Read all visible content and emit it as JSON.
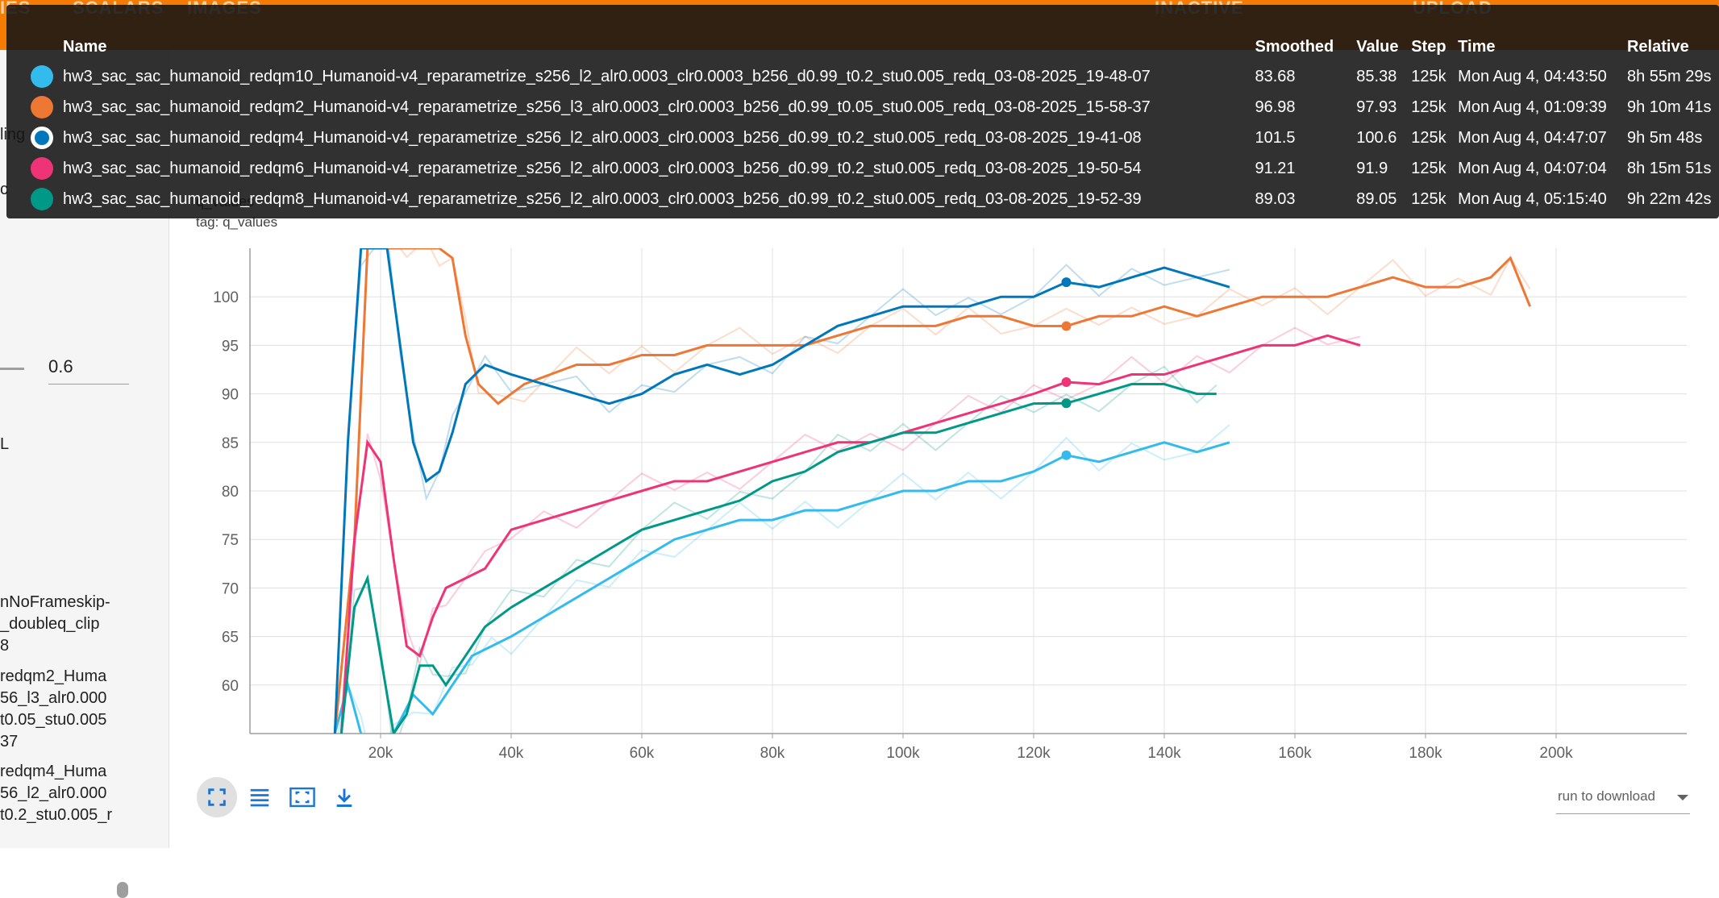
{
  "nav": {
    "tabs": [
      "IES",
      "SCALARS",
      "IMAGES"
    ],
    "status": "INACTIVE",
    "upload_label": "UPLOAD"
  },
  "sidebar": {
    "smoothing_fragment": "ling",
    "smoothing_value": "0.6",
    "fragment_l": "L",
    "fragment_c": "c",
    "run_fragments": [
      "nNoFrameskip-\n_doubleq_clip\n8",
      "redqm2_Huma\n56_l3_alr0.000\nt0.05_stu0.005\n37",
      "redqm4_Huma\n56_l2_alr0.000\nt0.2_stu0.005_r"
    ]
  },
  "chart_title": "q_values",
  "chart_tag": "tag: q_values",
  "download_label": "run to download",
  "tooltip": {
    "headers": [
      "Name",
      "Smoothed",
      "Value",
      "Step",
      "Time",
      "Relative"
    ],
    "rows": [
      {
        "name": "hw3_sac_sac_humanoid_redqm10_Humanoid-v4_reparametrize_s256_l2_alr0.0003_clr0.0003_b256_d0.99_t0.2_stu0.005_redq_03-08-2025_19-48-07",
        "smoothed": "83.68",
        "value": "85.38",
        "step": "125k",
        "time": "Mon Aug 4, 04:43:50",
        "relative": "8h 55m 29s",
        "color": "#33bbee",
        "hollow": false
      },
      {
        "name": "hw3_sac_sac_humanoid_redqm2_Humanoid-v4_reparametrize_s256_l3_alr0.0003_clr0.0003_b256_d0.99_t0.05_stu0.005_redq_03-08-2025_15-58-37",
        "smoothed": "96.98",
        "value": "97.93",
        "step": "125k",
        "time": "Mon Aug 4, 01:09:39",
        "relative": "9h 10m 41s",
        "color": "#ee7733",
        "hollow": false
      },
      {
        "name": "hw3_sac_sac_humanoid_redqm4_Humanoid-v4_reparametrize_s256_l2_alr0.0003_clr0.0003_b256_d0.99_t0.2_stu0.005_redq_03-08-2025_19-41-08",
        "smoothed": "101.5",
        "value": "100.6",
        "step": "125k",
        "time": "Mon Aug 4, 04:47:07",
        "relative": "9h 5m 48s",
        "color": "#0077bb",
        "hollow": true
      },
      {
        "name": "hw3_sac_sac_humanoid_redqm6_Humanoid-v4_reparametrize_s256_l2_alr0.0003_clr0.0003_b256_d0.99_t0.2_stu0.005_redq_03-08-2025_19-50-54",
        "smoothed": "91.21",
        "value": "91.9",
        "step": "125k",
        "time": "Mon Aug 4, 04:07:04",
        "relative": "8h 15m 51s",
        "color": "#ee3377",
        "hollow": false
      },
      {
        "name": "hw3_sac_sac_humanoid_redqm8_Humanoid-v4_reparametrize_s256_l2_alr0.0003_clr0.0003_b256_d0.99_t0.2_stu0.005_redq_03-08-2025_19-52-39",
        "smoothed": "89.03",
        "value": "89.05",
        "step": "125k",
        "time": "Mon Aug 4, 05:15:40",
        "relative": "9h 22m 42s",
        "color": "#009988",
        "hollow": false
      }
    ]
  },
  "chart_data": {
    "type": "line",
    "title": "q_values",
    "xlabel": "",
    "ylabel": "",
    "xlim": [
      0,
      220000
    ],
    "ylim": [
      55,
      105
    ],
    "x_ticks": [
      20000,
      40000,
      60000,
      80000,
      100000,
      120000,
      140000,
      160000,
      180000,
      200000
    ],
    "x_tick_labels": [
      "20k",
      "40k",
      "60k",
      "80k",
      "100k",
      "120k",
      "140k",
      "160k",
      "180k",
      "200k"
    ],
    "y_ticks": [
      60,
      65,
      70,
      75,
      80,
      85,
      90,
      95,
      100
    ],
    "grid": true,
    "hover_step": 125000,
    "series": [
      {
        "name": "hw3_sac_sac_humanoid_redqm10_Humanoid-v4_reparametrize_s256_l2_alr0.0003_clr0.0003_b256_d0.99_t0.2_stu0.005_redq_03-08-2025_19-48-07",
        "color": "#33bbee",
        "x": [
          13000,
          15000,
          17000,
          19000,
          22000,
          25000,
          28000,
          31000,
          34000,
          37000,
          40000,
          45000,
          50000,
          55000,
          60000,
          65000,
          70000,
          75000,
          80000,
          85000,
          90000,
          95000,
          100000,
          105000,
          110000,
          115000,
          120000,
          125000,
          130000,
          135000,
          140000,
          145000,
          150000
        ],
        "y": [
          55,
          60,
          55,
          52,
          55,
          59,
          57,
          60,
          63,
          64,
          65,
          67,
          69,
          71,
          73,
          75,
          76,
          77,
          77,
          78,
          78,
          79,
          80,
          80,
          81,
          81,
          82,
          83.68,
          83,
          84,
          85,
          84,
          85
        ]
      },
      {
        "name": "hw3_sac_sac_humanoid_redqm2_Humanoid-v4_reparametrize_s256_l3_alr0.0003_clr0.0003_b256_d0.99_t0.05_stu0.005_redq_03-08-2025_15-58-37",
        "color": "#ee7733",
        "x": [
          13000,
          16000,
          18000,
          21000,
          24000,
          27000,
          29000,
          31000,
          33000,
          35000,
          38000,
          42000,
          46000,
          50000,
          55000,
          60000,
          65000,
          70000,
          75000,
          80000,
          85000,
          90000,
          95000,
          100000,
          105000,
          110000,
          115000,
          120000,
          125000,
          130000,
          135000,
          140000,
          145000,
          150000,
          155000,
          160000,
          165000,
          170000,
          175000,
          180000,
          185000,
          190000,
          193000,
          196000
        ],
        "y": [
          55,
          75,
          105,
          105,
          105,
          105,
          105,
          104,
          96,
          91,
          89,
          91,
          92,
          93,
          93,
          94,
          94,
          95,
          95,
          95,
          95,
          96,
          97,
          97,
          97,
          98,
          98,
          97,
          96.98,
          98,
          98,
          99,
          98,
          99,
          100,
          100,
          100,
          101,
          102,
          101,
          101,
          102,
          104,
          99
        ]
      },
      {
        "name": "hw3_sac_sac_humanoid_redqm4_Humanoid-v4_reparametrize_s256_l2_alr0.0003_clr0.0003_b256_d0.99_t0.2_stu0.005_redq_03-08-2025_19-41-08",
        "color": "#0077bb",
        "x": [
          13000,
          15000,
          17000,
          19000,
          21000,
          23000,
          25000,
          27000,
          29000,
          31000,
          33000,
          36000,
          40000,
          45000,
          50000,
          55000,
          60000,
          65000,
          70000,
          75000,
          80000,
          85000,
          90000,
          95000,
          100000,
          105000,
          110000,
          115000,
          120000,
          125000,
          130000,
          135000,
          140000,
          145000,
          150000
        ],
        "y": [
          55,
          85,
          105,
          105,
          105,
          95,
          85,
          81,
          82,
          86,
          91,
          93,
          92,
          91,
          90,
          89,
          90,
          92,
          93,
          92,
          93,
          95,
          97,
          98,
          99,
          99,
          99,
          100,
          100,
          101.5,
          101,
          102,
          103,
          102,
          101
        ]
      },
      {
        "name": "hw3_sac_sac_humanoid_redqm6_Humanoid-v4_reparametrize_s256_l2_alr0.0003_clr0.0003_b256_d0.99_t0.2_stu0.005_redq_03-08-2025_19-50-54",
        "color": "#ee3377",
        "x": [
          14000,
          16000,
          18000,
          20000,
          22000,
          24000,
          26000,
          28000,
          30000,
          33000,
          36000,
          40000,
          45000,
          50000,
          55000,
          60000,
          65000,
          70000,
          75000,
          80000,
          85000,
          90000,
          95000,
          100000,
          105000,
          110000,
          115000,
          120000,
          125000,
          130000,
          135000,
          140000,
          145000,
          150000,
          155000,
          160000,
          165000,
          170000
        ],
        "y": [
          55,
          75,
          85,
          83,
          73,
          64,
          63,
          67,
          70,
          71,
          72,
          76,
          77,
          78,
          79,
          80,
          81,
          81,
          82,
          83,
          84,
          85,
          85,
          86,
          87,
          88,
          89,
          90,
          91.21,
          91,
          92,
          92,
          93,
          94,
          95,
          95,
          96,
          95
        ]
      },
      {
        "name": "hw3_sac_sac_humanoid_redqm8_Humanoid-v4_reparametrize_s256_l2_alr0.0003_clr0.0003_b256_d0.99_t0.2_stu0.005_redq_03-08-2025_19-52-39",
        "color": "#009988",
        "x": [
          14000,
          16000,
          18000,
          20000,
          22000,
          24000,
          26000,
          28000,
          30000,
          33000,
          36000,
          40000,
          45000,
          50000,
          55000,
          60000,
          65000,
          70000,
          75000,
          80000,
          85000,
          90000,
          95000,
          100000,
          105000,
          110000,
          115000,
          120000,
          125000,
          130000,
          135000,
          140000,
          145000,
          148000
        ],
        "y": [
          55,
          68,
          71,
          63,
          55,
          57,
          62,
          62,
          60,
          63,
          66,
          68,
          70,
          72,
          74,
          76,
          77,
          78,
          79,
          81,
          82,
          84,
          85,
          86,
          86,
          87,
          88,
          89,
          89.03,
          90,
          91,
          91,
          90,
          90
        ]
      }
    ]
  }
}
